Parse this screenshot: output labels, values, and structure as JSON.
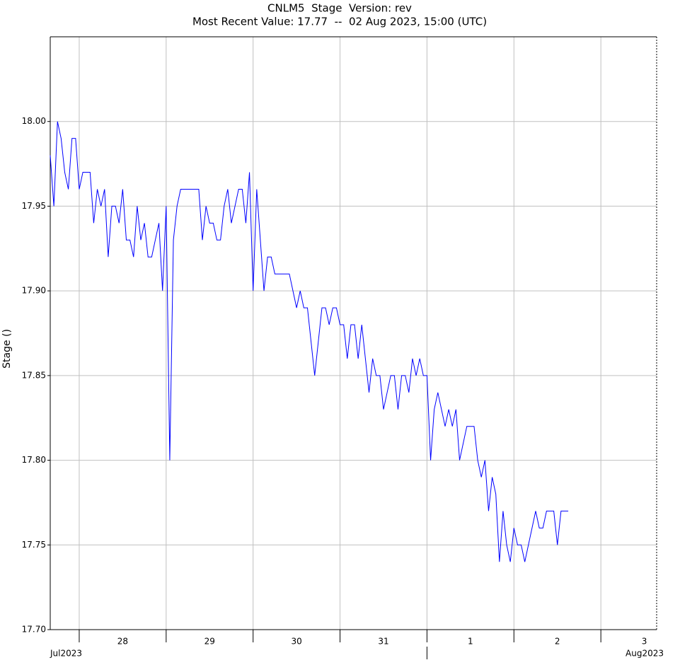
{
  "chart_data": {
    "type": "line",
    "title": "CNLM5  Stage  Version: rev",
    "subtitle": "Most Recent Value: 17.77  --  02 Aug 2023, 15:00 (UTC)",
    "ylabel": "Stage ()",
    "xlim": [
      "2023-07-27 16:00",
      "2023-08-03 15:24"
    ],
    "ylim": [
      17.7,
      18.05
    ],
    "yticks": [
      {
        "value": 17.7,
        "label": "17.70"
      },
      {
        "value": 17.75,
        "label": "17.75"
      },
      {
        "value": 17.8,
        "label": "17.80"
      },
      {
        "value": 17.85,
        "label": "17.85"
      },
      {
        "value": 17.9,
        "label": "17.90"
      },
      {
        "value": 17.95,
        "label": "17.95"
      },
      {
        "value": 18.0,
        "label": "18.00"
      }
    ],
    "xticks": [
      "2023-07-28 00:00",
      "2023-07-29 00:00",
      "2023-07-30 00:00",
      "2023-07-31 00:00",
      "2023-08-01 00:00",
      "2023-08-02 00:00",
      "2023-08-03 00:00"
    ],
    "day_labels": [
      {
        "value": "2023-07-28 12:00",
        "label": "28"
      },
      {
        "value": "2023-07-29 12:00",
        "label": "29"
      },
      {
        "value": "2023-07-30 12:00",
        "label": "30"
      },
      {
        "value": "2023-07-31 12:00",
        "label": "31"
      },
      {
        "value": "2023-08-01 12:00",
        "label": "1"
      },
      {
        "value": "2023-08-02 12:00",
        "label": "2"
      },
      {
        "value": "2023-08-03 12:00",
        "label": "3"
      }
    ],
    "month_ticks": [
      "2023-08-01 00:00"
    ],
    "month_labels": [
      "Jul2023",
      "Aug2023"
    ],
    "grid": true,
    "series": [
      {
        "name": "Stage",
        "color": "#0000ff",
        "x": [
          "2023-07-27 16:00",
          "2023-07-27 17:00",
          "2023-07-27 18:00",
          "2023-07-27 19:00",
          "2023-07-27 20:00",
          "2023-07-27 21:00",
          "2023-07-27 22:00",
          "2023-07-27 23:00",
          "2023-07-28 00:00",
          "2023-07-28 01:00",
          "2023-07-28 02:00",
          "2023-07-28 03:00",
          "2023-07-28 04:00",
          "2023-07-28 05:00",
          "2023-07-28 06:00",
          "2023-07-28 07:00",
          "2023-07-28 08:00",
          "2023-07-28 09:00",
          "2023-07-28 10:00",
          "2023-07-28 11:00",
          "2023-07-28 12:00",
          "2023-07-28 13:00",
          "2023-07-28 14:00",
          "2023-07-28 15:00",
          "2023-07-28 16:00",
          "2023-07-28 17:00",
          "2023-07-28 18:00",
          "2023-07-28 19:00",
          "2023-07-28 20:00",
          "2023-07-28 21:00",
          "2023-07-28 22:00",
          "2023-07-28 23:00",
          "2023-07-29 00:00",
          "2023-07-29 01:00",
          "2023-07-29 02:00",
          "2023-07-29 03:00",
          "2023-07-29 04:00",
          "2023-07-29 05:00",
          "2023-07-29 06:00",
          "2023-07-29 07:00",
          "2023-07-29 08:00",
          "2023-07-29 09:00",
          "2023-07-29 10:00",
          "2023-07-29 11:00",
          "2023-07-29 12:00",
          "2023-07-29 13:00",
          "2023-07-29 14:00",
          "2023-07-29 15:00",
          "2023-07-29 16:00",
          "2023-07-29 17:00",
          "2023-07-29 18:00",
          "2023-07-29 19:00",
          "2023-07-29 20:00",
          "2023-07-29 21:00",
          "2023-07-29 22:00",
          "2023-07-29 23:00",
          "2023-07-30 00:00",
          "2023-07-30 01:00",
          "2023-07-30 02:00",
          "2023-07-30 03:00",
          "2023-07-30 04:00",
          "2023-07-30 05:00",
          "2023-07-30 06:00",
          "2023-07-30 07:00",
          "2023-07-30 08:00",
          "2023-07-30 09:00",
          "2023-07-30 10:00",
          "2023-07-30 11:00",
          "2023-07-30 12:00",
          "2023-07-30 13:00",
          "2023-07-30 14:00",
          "2023-07-30 15:00",
          "2023-07-30 16:00",
          "2023-07-30 17:00",
          "2023-07-30 18:00",
          "2023-07-30 19:00",
          "2023-07-30 20:00",
          "2023-07-30 21:00",
          "2023-07-30 22:00",
          "2023-07-30 23:00",
          "2023-07-31 00:00",
          "2023-07-31 01:00",
          "2023-07-31 02:00",
          "2023-07-31 03:00",
          "2023-07-31 04:00",
          "2023-07-31 05:00",
          "2023-07-31 06:00",
          "2023-07-31 07:00",
          "2023-07-31 08:00",
          "2023-07-31 09:00",
          "2023-07-31 10:00",
          "2023-07-31 11:00",
          "2023-07-31 12:00",
          "2023-07-31 13:00",
          "2023-07-31 14:00",
          "2023-07-31 15:00",
          "2023-07-31 16:00",
          "2023-07-31 17:00",
          "2023-07-31 18:00",
          "2023-07-31 19:00",
          "2023-07-31 20:00",
          "2023-07-31 21:00",
          "2023-07-31 22:00",
          "2023-07-31 23:00",
          "2023-08-01 00:00",
          "2023-08-01 01:00",
          "2023-08-01 02:00",
          "2023-08-01 03:00",
          "2023-08-01 04:00",
          "2023-08-01 05:00",
          "2023-08-01 06:00",
          "2023-08-01 07:00",
          "2023-08-01 08:00",
          "2023-08-01 09:00",
          "2023-08-01 10:00",
          "2023-08-01 11:00",
          "2023-08-01 12:00",
          "2023-08-01 13:00",
          "2023-08-01 14:00",
          "2023-08-01 15:00",
          "2023-08-01 16:00",
          "2023-08-01 17:00",
          "2023-08-01 18:00",
          "2023-08-01 19:00",
          "2023-08-01 20:00",
          "2023-08-01 21:00",
          "2023-08-01 22:00",
          "2023-08-01 23:00",
          "2023-08-02 00:00",
          "2023-08-02 01:00",
          "2023-08-02 02:00",
          "2023-08-02 03:00",
          "2023-08-02 04:00",
          "2023-08-02 05:00",
          "2023-08-02 06:00",
          "2023-08-02 07:00",
          "2023-08-02 08:00",
          "2023-08-02 09:00",
          "2023-08-02 10:00",
          "2023-08-02 11:00",
          "2023-08-02 12:00",
          "2023-08-02 13:00",
          "2023-08-02 14:00",
          "2023-08-02 15:00"
        ],
        "values": [
          17.98,
          17.95,
          18.0,
          17.99,
          17.97,
          17.96,
          17.99,
          17.99,
          17.96,
          17.97,
          17.97,
          17.97,
          17.94,
          17.96,
          17.95,
          17.96,
          17.92,
          17.95,
          17.95,
          17.94,
          17.96,
          17.93,
          17.93,
          17.92,
          17.95,
          17.93,
          17.94,
          17.92,
          17.92,
          17.93,
          17.94,
          17.9,
          17.95,
          17.8,
          17.93,
          17.95,
          17.96,
          17.96,
          17.96,
          17.96,
          17.96,
          17.96,
          17.93,
          17.95,
          17.94,
          17.94,
          17.93,
          17.93,
          17.95,
          17.96,
          17.94,
          17.95,
          17.96,
          17.96,
          17.94,
          17.97,
          17.9,
          17.96,
          17.93,
          17.9,
          17.92,
          17.92,
          17.91,
          17.91,
          17.91,
          17.91,
          17.91,
          17.9,
          17.89,
          17.9,
          17.89,
          17.89,
          17.87,
          17.85,
          17.87,
          17.89,
          17.89,
          17.88,
          17.89,
          17.89,
          17.88,
          17.88,
          17.86,
          17.88,
          17.88,
          17.86,
          17.88,
          17.86,
          17.84,
          17.86,
          17.85,
          17.85,
          17.83,
          17.84,
          17.85,
          17.85,
          17.83,
          17.85,
          17.85,
          17.84,
          17.86,
          17.85,
          17.86,
          17.85,
          17.85,
          17.8,
          17.83,
          17.84,
          17.83,
          17.82,
          17.83,
          17.82,
          17.83,
          17.8,
          17.81,
          17.82,
          17.82,
          17.82,
          17.8,
          17.79,
          17.8,
          17.77,
          17.79,
          17.78,
          17.74,
          17.77,
          17.75,
          17.74,
          17.76,
          17.75,
          17.75,
          17.74,
          17.75,
          17.76,
          17.77,
          17.76,
          17.76,
          17.77,
          17.77,
          17.77,
          17.75,
          17.77,
          17.77,
          17.77
        ]
      }
    ]
  }
}
